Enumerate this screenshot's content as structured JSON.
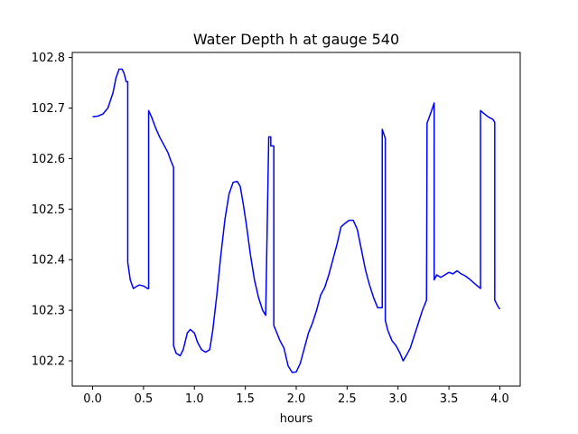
{
  "chart_data": {
    "type": "line",
    "title": "Water Depth h at gauge 540",
    "xlabel": "hours",
    "ylabel": "",
    "xlim": [
      -0.2,
      4.2
    ],
    "ylim": [
      102.15,
      102.81
    ],
    "xticks": [
      0.0,
      0.5,
      1.0,
      1.5,
      2.0,
      2.5,
      3.0,
      3.5,
      4.0
    ],
    "xtick_labels": [
      "0.0",
      "0.5",
      "1.0",
      "1.5",
      "2.0",
      "2.5",
      "3.0",
      "3.5",
      "4.0"
    ],
    "yticks": [
      102.2,
      102.3,
      102.4,
      102.5,
      102.6,
      102.7,
      102.8
    ],
    "ytick_labels": [
      "102.2",
      "102.3",
      "102.4",
      "102.5",
      "102.6",
      "102.7",
      "102.8"
    ],
    "grid": false,
    "series": [
      {
        "color": "#0000ff",
        "x": [
          0.0,
          0.05,
          0.1,
          0.15,
          0.2,
          0.23,
          0.26,
          0.29,
          0.31,
          0.33,
          0.345,
          0.345,
          0.37,
          0.4,
          0.43,
          0.46,
          0.5,
          0.54,
          0.55,
          0.55,
          0.58,
          0.62,
          0.66,
          0.7,
          0.74,
          0.77,
          0.795,
          0.795,
          0.82,
          0.86,
          0.89,
          0.93,
          0.96,
          1.0,
          1.03,
          1.07,
          1.11,
          1.15,
          1.18,
          1.22,
          1.26,
          1.3,
          1.34,
          1.38,
          1.42,
          1.45,
          1.48,
          1.51,
          1.55,
          1.59,
          1.63,
          1.67,
          1.7,
          1.73,
          1.75,
          1.75,
          1.78,
          1.78,
          1.8,
          1.84,
          1.88,
          1.92,
          1.96,
          2.0,
          2.04,
          2.08,
          2.12,
          2.16,
          2.2,
          2.24,
          2.28,
          2.32,
          2.36,
          2.4,
          2.44,
          2.48,
          2.52,
          2.56,
          2.6,
          2.64,
          2.68,
          2.72,
          2.76,
          2.8,
          2.845,
          2.845,
          2.875,
          2.875,
          2.9,
          2.94,
          2.98,
          3.02,
          3.05,
          3.05,
          3.08,
          3.12,
          3.16,
          3.2,
          3.24,
          3.28,
          3.285,
          3.33,
          3.355,
          3.355,
          3.38,
          3.42,
          3.46,
          3.5,
          3.54,
          3.58,
          3.62,
          3.66,
          3.7,
          3.74,
          3.78,
          3.81,
          3.81,
          3.85,
          3.89,
          3.93,
          3.95,
          3.95,
          3.98,
          4.0
        ],
        "y": [
          102.683,
          102.684,
          102.688,
          102.7,
          102.73,
          102.76,
          102.777,
          102.777,
          102.768,
          102.752,
          102.752,
          102.395,
          102.36,
          102.343,
          102.347,
          102.35,
          102.348,
          102.343,
          102.343,
          102.695,
          102.682,
          102.66,
          102.642,
          102.627,
          102.612,
          102.595,
          102.583,
          102.23,
          102.215,
          102.21,
          102.222,
          102.255,
          102.262,
          102.255,
          102.237,
          102.222,
          102.217,
          102.222,
          102.26,
          102.33,
          102.41,
          102.48,
          102.53,
          102.553,
          102.555,
          102.545,
          102.51,
          102.47,
          102.41,
          102.36,
          102.325,
          102.3,
          102.29,
          102.643,
          102.643,
          102.625,
          102.625,
          102.27,
          102.26,
          102.24,
          102.225,
          102.19,
          102.177,
          102.178,
          102.195,
          102.225,
          102.255,
          102.275,
          102.3,
          102.33,
          102.345,
          102.37,
          102.4,
          102.43,
          102.465,
          102.472,
          102.478,
          102.478,
          102.46,
          102.42,
          102.38,
          102.35,
          102.325,
          102.305,
          102.305,
          102.658,
          102.64,
          102.28,
          102.26,
          102.24,
          102.23,
          102.215,
          102.2,
          102.2,
          102.21,
          102.225,
          102.25,
          102.275,
          102.3,
          102.32,
          102.67,
          102.695,
          102.71,
          102.36,
          102.37,
          102.365,
          102.37,
          102.375,
          102.372,
          102.378,
          102.372,
          102.368,
          102.362,
          102.355,
          102.348,
          102.343,
          102.695,
          102.688,
          102.682,
          102.678,
          102.672,
          102.32,
          102.308,
          102.302
        ]
      }
    ]
  }
}
